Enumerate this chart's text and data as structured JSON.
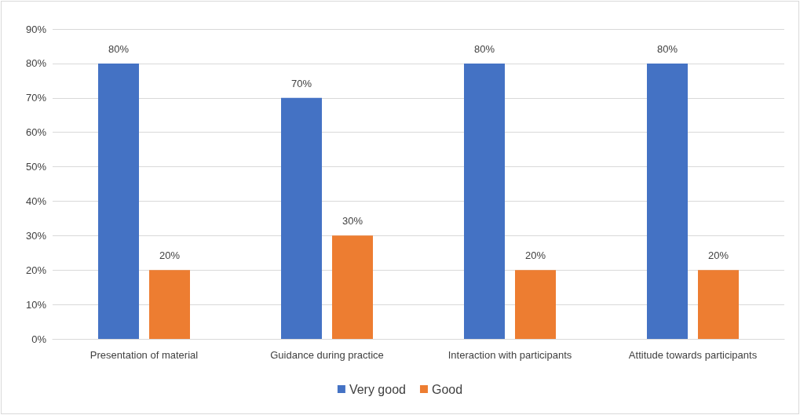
{
  "chart_data": {
    "type": "bar",
    "categories": [
      "Presentation of material",
      "Guidance during practice",
      "Interaction with participants",
      "Attitude towards participants"
    ],
    "series": [
      {
        "name": "Very good",
        "color": "#4472c4",
        "values": [
          80,
          70,
          80,
          80
        ],
        "value_labels": [
          "80%",
          "70%",
          "80%",
          "80%"
        ]
      },
      {
        "name": "Good",
        "color": "#ed7d31",
        "values": [
          20,
          30,
          20,
          20
        ],
        "value_labels": [
          "20%",
          "30%",
          "20%",
          "20%"
        ]
      }
    ],
    "ylim": [
      0,
      90
    ],
    "yticks": [
      {
        "value": 0,
        "label": "0%"
      },
      {
        "value": 10,
        "label": "10%"
      },
      {
        "value": 20,
        "label": "20%"
      },
      {
        "value": 30,
        "label": "30%"
      },
      {
        "value": 40,
        "label": "40%"
      },
      {
        "value": 50,
        "label": "50%"
      },
      {
        "value": 60,
        "label": "60%"
      },
      {
        "value": 70,
        "label": "70%"
      },
      {
        "value": 80,
        "label": "80%"
      },
      {
        "value": 90,
        "label": "90%"
      }
    ],
    "grid": "y",
    "legend": "bottom"
  }
}
